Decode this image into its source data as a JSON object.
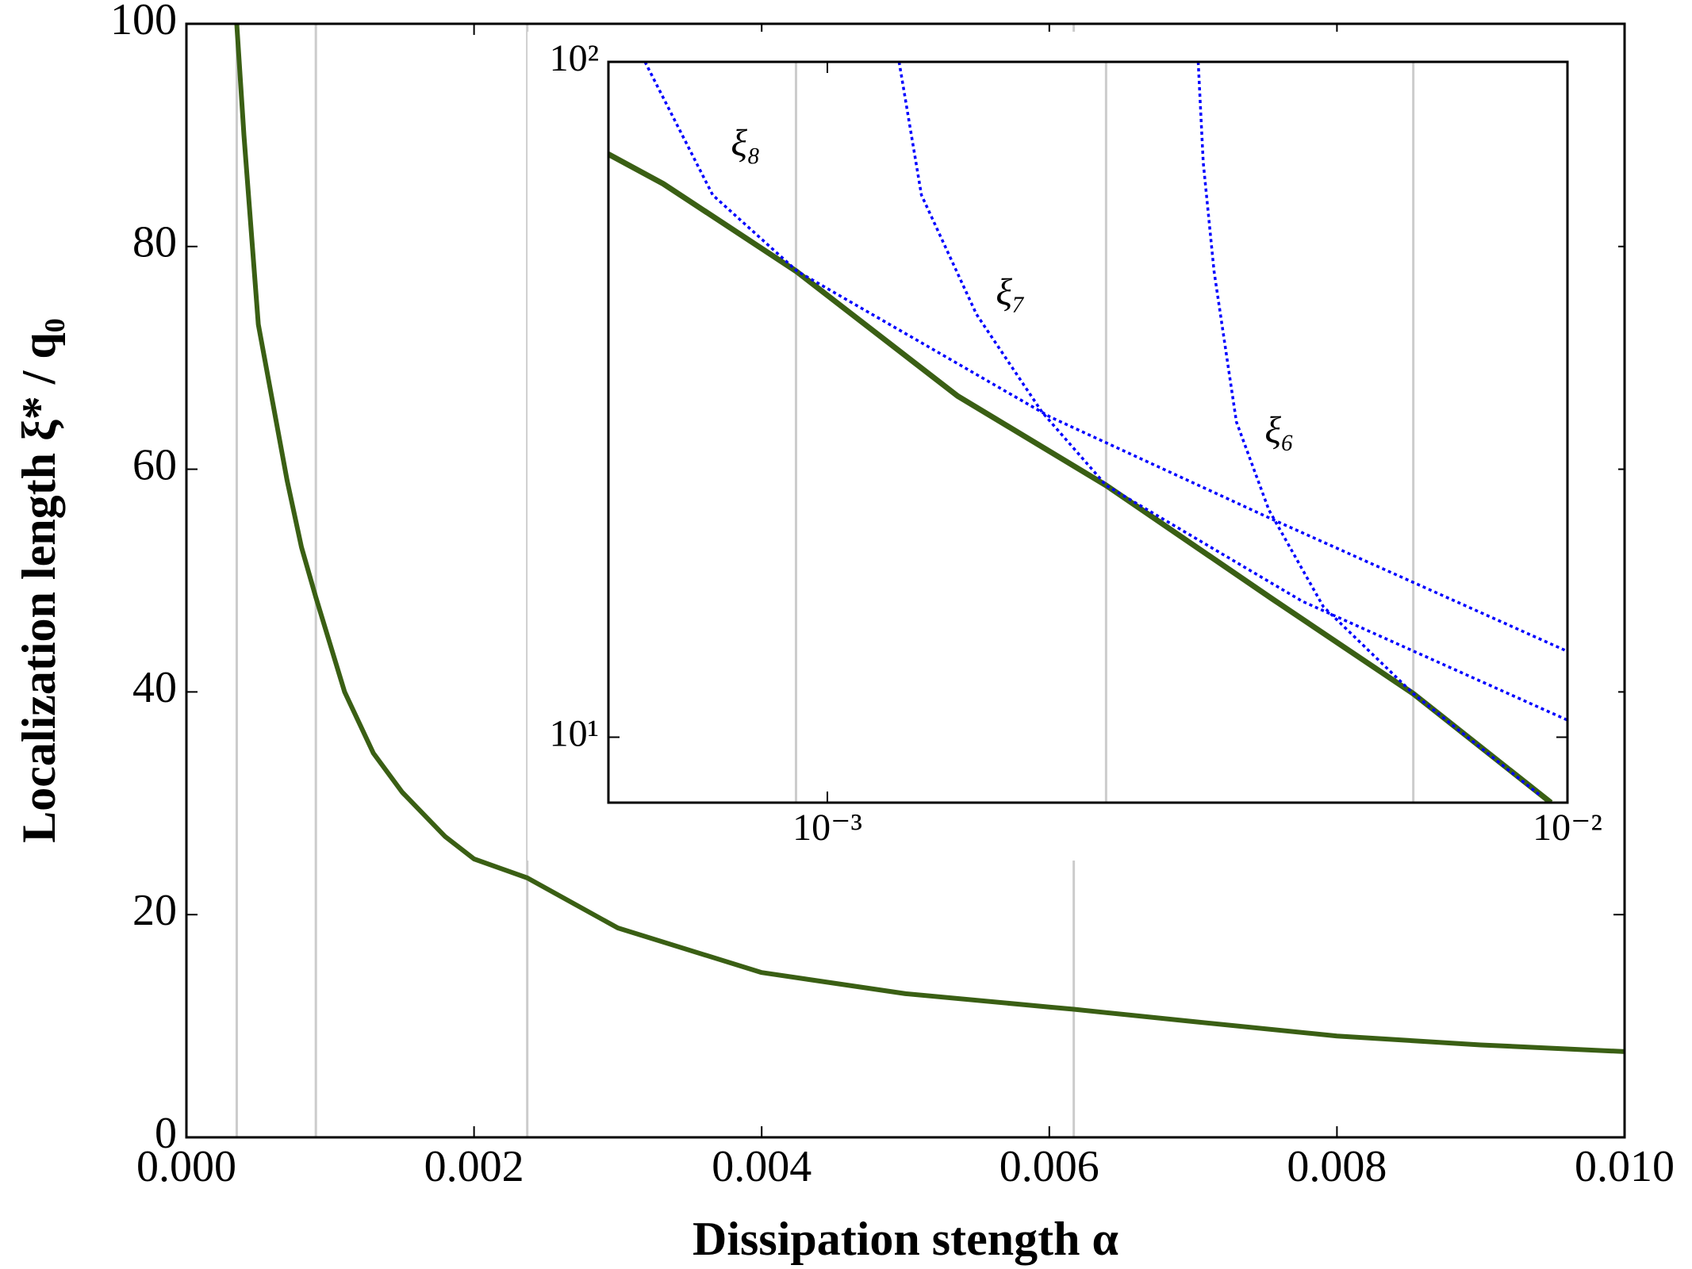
{
  "chart_data": [
    {
      "type": "line",
      "xlabel": "Dissipation stength α",
      "ylabel": "Localization length ξ* / q₀",
      "xscale": "linear",
      "yscale": "linear",
      "xlim": [
        0,
        0.01
      ],
      "ylim": [
        0,
        100
      ],
      "xticks": [
        {
          "value": 0,
          "label": "0.000"
        },
        {
          "value": 0.002,
          "label": "0.002"
        },
        {
          "value": 0.004,
          "label": "0.004"
        },
        {
          "value": 0.006,
          "label": "0.006"
        },
        {
          "value": 0.008,
          "label": "0.008"
        },
        {
          "value": 0.01,
          "label": "0.010"
        }
      ],
      "yticks": [
        0,
        20,
        40,
        60,
        80,
        100
      ],
      "vlines": {
        "color": "#cccccc",
        "x": [
          0.00035,
          0.0009,
          0.00237,
          0.00617
        ]
      },
      "series": [
        {
          "color": "#3a5f14",
          "style": "solid",
          "x": [
            0.00035,
            0.0004,
            0.0005,
            0.0006,
            0.0007,
            0.0008,
            0.0009,
            0.0011,
            0.0013,
            0.0015,
            0.0018,
            0.002,
            0.00237,
            0.003,
            0.004,
            0.005,
            0.006,
            0.00617,
            0.007,
            0.008,
            0.009,
            0.01
          ],
          "values": [
            100,
            90,
            73,
            66,
            59,
            53,
            48.5,
            40,
            34.5,
            31,
            27,
            25,
            23.3,
            18.8,
            14.8,
            12.9,
            11.7,
            11.5,
            10.4,
            9.1,
            8.3,
            7.7
          ]
        }
      ]
    },
    {
      "type": "line",
      "xscale": "log",
      "yscale": "log",
      "xlim": [
        0.000506,
        0.01
      ],
      "ylim": [
        8,
        100
      ],
      "xticks": [
        {
          "value": 0.001,
          "label": "10⁻³"
        },
        {
          "value": 0.01,
          "label": "10⁻²"
        }
      ],
      "yticks": [
        {
          "value": 10,
          "label": "10¹"
        },
        {
          "value": 100,
          "label": "10²"
        }
      ],
      "vlines": {
        "color": "#cccccc",
        "x": [
          0.000907,
          0.00238,
          0.00619
        ]
      },
      "series": [
        {
          "color": "#3a5f14",
          "style": "solid",
          "x": [
            0.000506,
            0.0006,
            0.000907,
            0.0015,
            0.00238,
            0.004,
            0.00619,
            0.0095
          ],
          "values": [
            73,
            66,
            49,
            32,
            23.6,
            16,
            11.6,
            8
          ]
        },
        {
          "name": "ξ₈",
          "color": "#0000ff",
          "style": "dotted",
          "x": [
            0.000567,
            0.0007,
            0.00091,
            0.002,
            0.004,
            0.01
          ],
          "values": [
            100,
            63.5,
            49,
            29.8,
            21,
            13.4
          ]
        },
        {
          "name": "ξ₇",
          "color": "#0000ff",
          "style": "dotted",
          "x": [
            0.00125,
            0.00134,
            0.00159,
            0.00195,
            0.00238,
            0.00438,
            0.01
          ],
          "values": [
            100,
            63.5,
            42.3,
            30.3,
            23.6,
            15.9,
            10.6
          ]
        },
        {
          "name": "ξ₆",
          "color": "#0000ff",
          "style": "dotted",
          "x": [
            0.00317,
            0.00322,
            0.00333,
            0.00357,
            0.00395,
            0.00468,
            0.00619,
            0.00919
          ],
          "values": [
            100,
            71,
            49,
            29.3,
            21.7,
            15.6,
            11.6,
            8.2
          ]
        }
      ]
    }
  ]
}
